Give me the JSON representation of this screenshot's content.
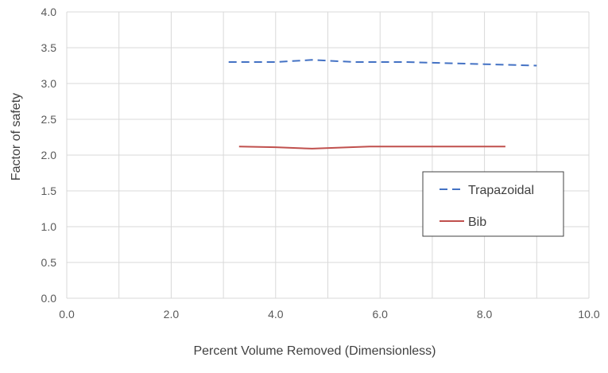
{
  "chart_data": {
    "type": "line",
    "title": "",
    "xlabel": "Percent Volume  Removed (Dimensionless)",
    "ylabel": "Factor of safety",
    "xlim": [
      0,
      10
    ],
    "ylim": [
      0,
      4
    ],
    "x_ticks": [
      "0.0",
      "2.0",
      "4.0",
      "6.0",
      "8.0",
      "10.0"
    ],
    "y_ticks": [
      "0.0",
      "0.5",
      "1.0",
      "1.5",
      "2.0",
      "2.5",
      "3.0",
      "3.5",
      "4.0"
    ],
    "grid": true,
    "legend_position": "right",
    "series": [
      {
        "name": "Trapazoidal",
        "color": "#4472c4",
        "dash": "dashed",
        "x": [
          3.1,
          4.0,
          4.7,
          5.5,
          6.5,
          8.0,
          9.0
        ],
        "y": [
          3.3,
          3.3,
          3.33,
          3.3,
          3.3,
          3.27,
          3.25
        ]
      },
      {
        "name": "Bib",
        "color": "#c0504d",
        "dash": "solid",
        "x": [
          3.3,
          4.0,
          4.7,
          5.8,
          7.0,
          8.4
        ],
        "y": [
          2.12,
          2.11,
          2.09,
          2.12,
          2.12,
          2.12
        ]
      }
    ]
  }
}
